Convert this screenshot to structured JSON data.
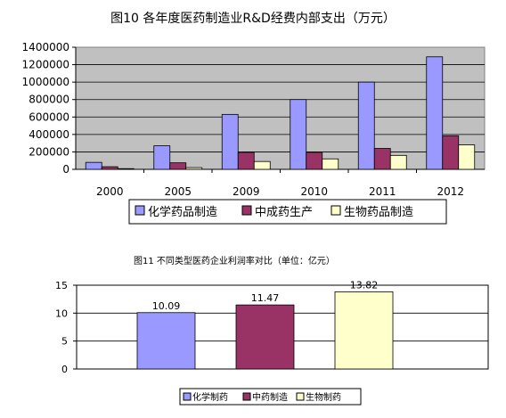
{
  "chart_data": [
    {
      "type": "bar",
      "title": "图10 各年度医药制造业R&D经费内部支出（万元）",
      "categories": [
        "2000",
        "2005",
        "2009",
        "2010",
        "2011",
        "2012"
      ],
      "series": [
        {
          "name": "化学药品制造",
          "values": [
            80000,
            270000,
            630000,
            800000,
            1000000,
            1290000
          ]
        },
        {
          "name": "中成药生产",
          "values": [
            30000,
            75000,
            195000,
            195000,
            240000,
            385000
          ]
        },
        {
          "name": "生物药品制造",
          "values": [
            8000,
            20000,
            90000,
            120000,
            160000,
            280000
          ]
        }
      ],
      "ylim": [
        0,
        1400000
      ],
      "yticks": [
        "0",
        "200000",
        "400000",
        "600000",
        "800000",
        "1000000",
        "1200000",
        "1400000"
      ],
      "grid": true,
      "legend_position": "bottom",
      "colors": [
        "#9999ff",
        "#993366",
        "#ffffcc"
      ]
    },
    {
      "type": "bar",
      "title": "图11 不同类型医药企业利润率对比（单位：亿元）",
      "categories": [
        "化学制药",
        "中药制造",
        "生物制药"
      ],
      "values": [
        10.09,
        11.47,
        13.82
      ],
      "data_labels": [
        "10.09",
        "11.47",
        "13.82"
      ],
      "ylim": [
        0,
        15
      ],
      "yticks": [
        "0",
        "5",
        "10",
        "15"
      ],
      "grid": true,
      "legend_position": "bottom",
      "colors": [
        "#9999ff",
        "#993366",
        "#ffffcc"
      ]
    }
  ]
}
